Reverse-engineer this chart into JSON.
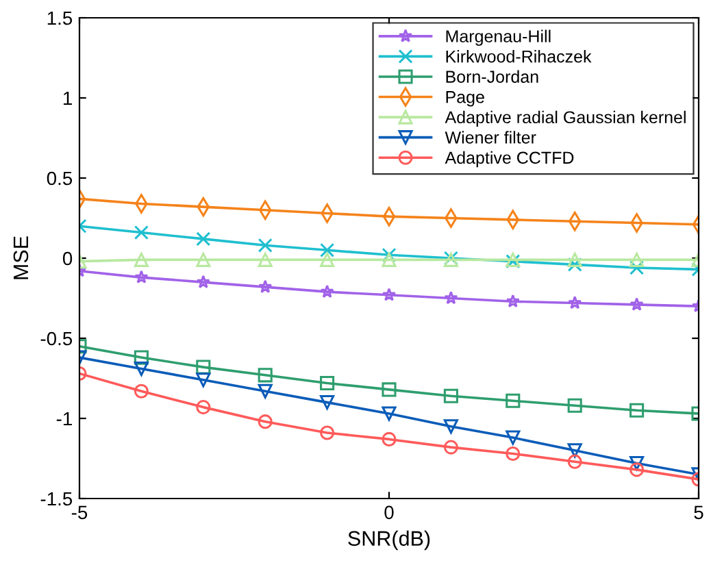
{
  "chart_data": {
    "type": "line",
    "xlabel": "SNR(dB)",
    "ylabel": "MSE",
    "x": [
      -5,
      -4,
      -3,
      -2,
      -1,
      0,
      1,
      2,
      3,
      4,
      5
    ],
    "xlim": [
      -5,
      5
    ],
    "xticks": [
      -5,
      0,
      5
    ],
    "ylim": [
      -1.5,
      1.5
    ],
    "yticks": [
      -1.5,
      -1,
      -0.5,
      0,
      0.5,
      1,
      1.5
    ],
    "grid": false,
    "legend": "top right",
    "line_style": "solid",
    "series": [
      {
        "name": "Margenau-Hill",
        "color": "#a162e8",
        "marker": "star",
        "values": [
          -0.08,
          -0.12,
          -0.15,
          -0.18,
          -0.21,
          -0.23,
          -0.25,
          -0.27,
          -0.28,
          -0.29,
          -0.3
        ]
      },
      {
        "name": "Kirkwood-Rihaczek",
        "color": "#1fbfcf",
        "marker": "cross",
        "values": [
          0.2,
          0.16,
          0.12,
          0.08,
          0.05,
          0.02,
          0.0,
          -0.02,
          -0.04,
          -0.06,
          -0.07
        ]
      },
      {
        "name": "Born-Jordan",
        "color": "#2e9e6e",
        "marker": "square",
        "values": [
          -0.55,
          -0.62,
          -0.68,
          -0.73,
          -0.78,
          -0.82,
          -0.86,
          -0.89,
          -0.92,
          -0.95,
          -0.97
        ]
      },
      {
        "name": "Page",
        "color": "#f5831a",
        "marker": "diamond",
        "values": [
          0.37,
          0.34,
          0.32,
          0.3,
          0.28,
          0.26,
          0.25,
          0.24,
          0.23,
          0.22,
          0.21
        ]
      },
      {
        "name": "Adaptive radial Gaussian kernel",
        "color": "#b8e8a0",
        "marker": "triangle",
        "values": [
          -0.02,
          -0.01,
          -0.01,
          -0.01,
          -0.01,
          -0.01,
          -0.01,
          -0.01,
          -0.01,
          -0.01,
          -0.01
        ]
      },
      {
        "name": "Wiener filter",
        "color": "#0a5cb8",
        "marker": "triangle_down",
        "values": [
          -0.62,
          -0.69,
          -0.76,
          -0.83,
          -0.9,
          -0.97,
          -1.05,
          -1.12,
          -1.2,
          -1.28,
          -1.35
        ]
      },
      {
        "name": "Adaptive CCTFD",
        "color": "#ff5a5a",
        "marker": "circle",
        "values": [
          -0.72,
          -0.83,
          -0.93,
          -1.02,
          -1.09,
          -1.13,
          -1.18,
          -1.22,
          -1.27,
          -1.32,
          -1.38
        ]
      }
    ]
  }
}
